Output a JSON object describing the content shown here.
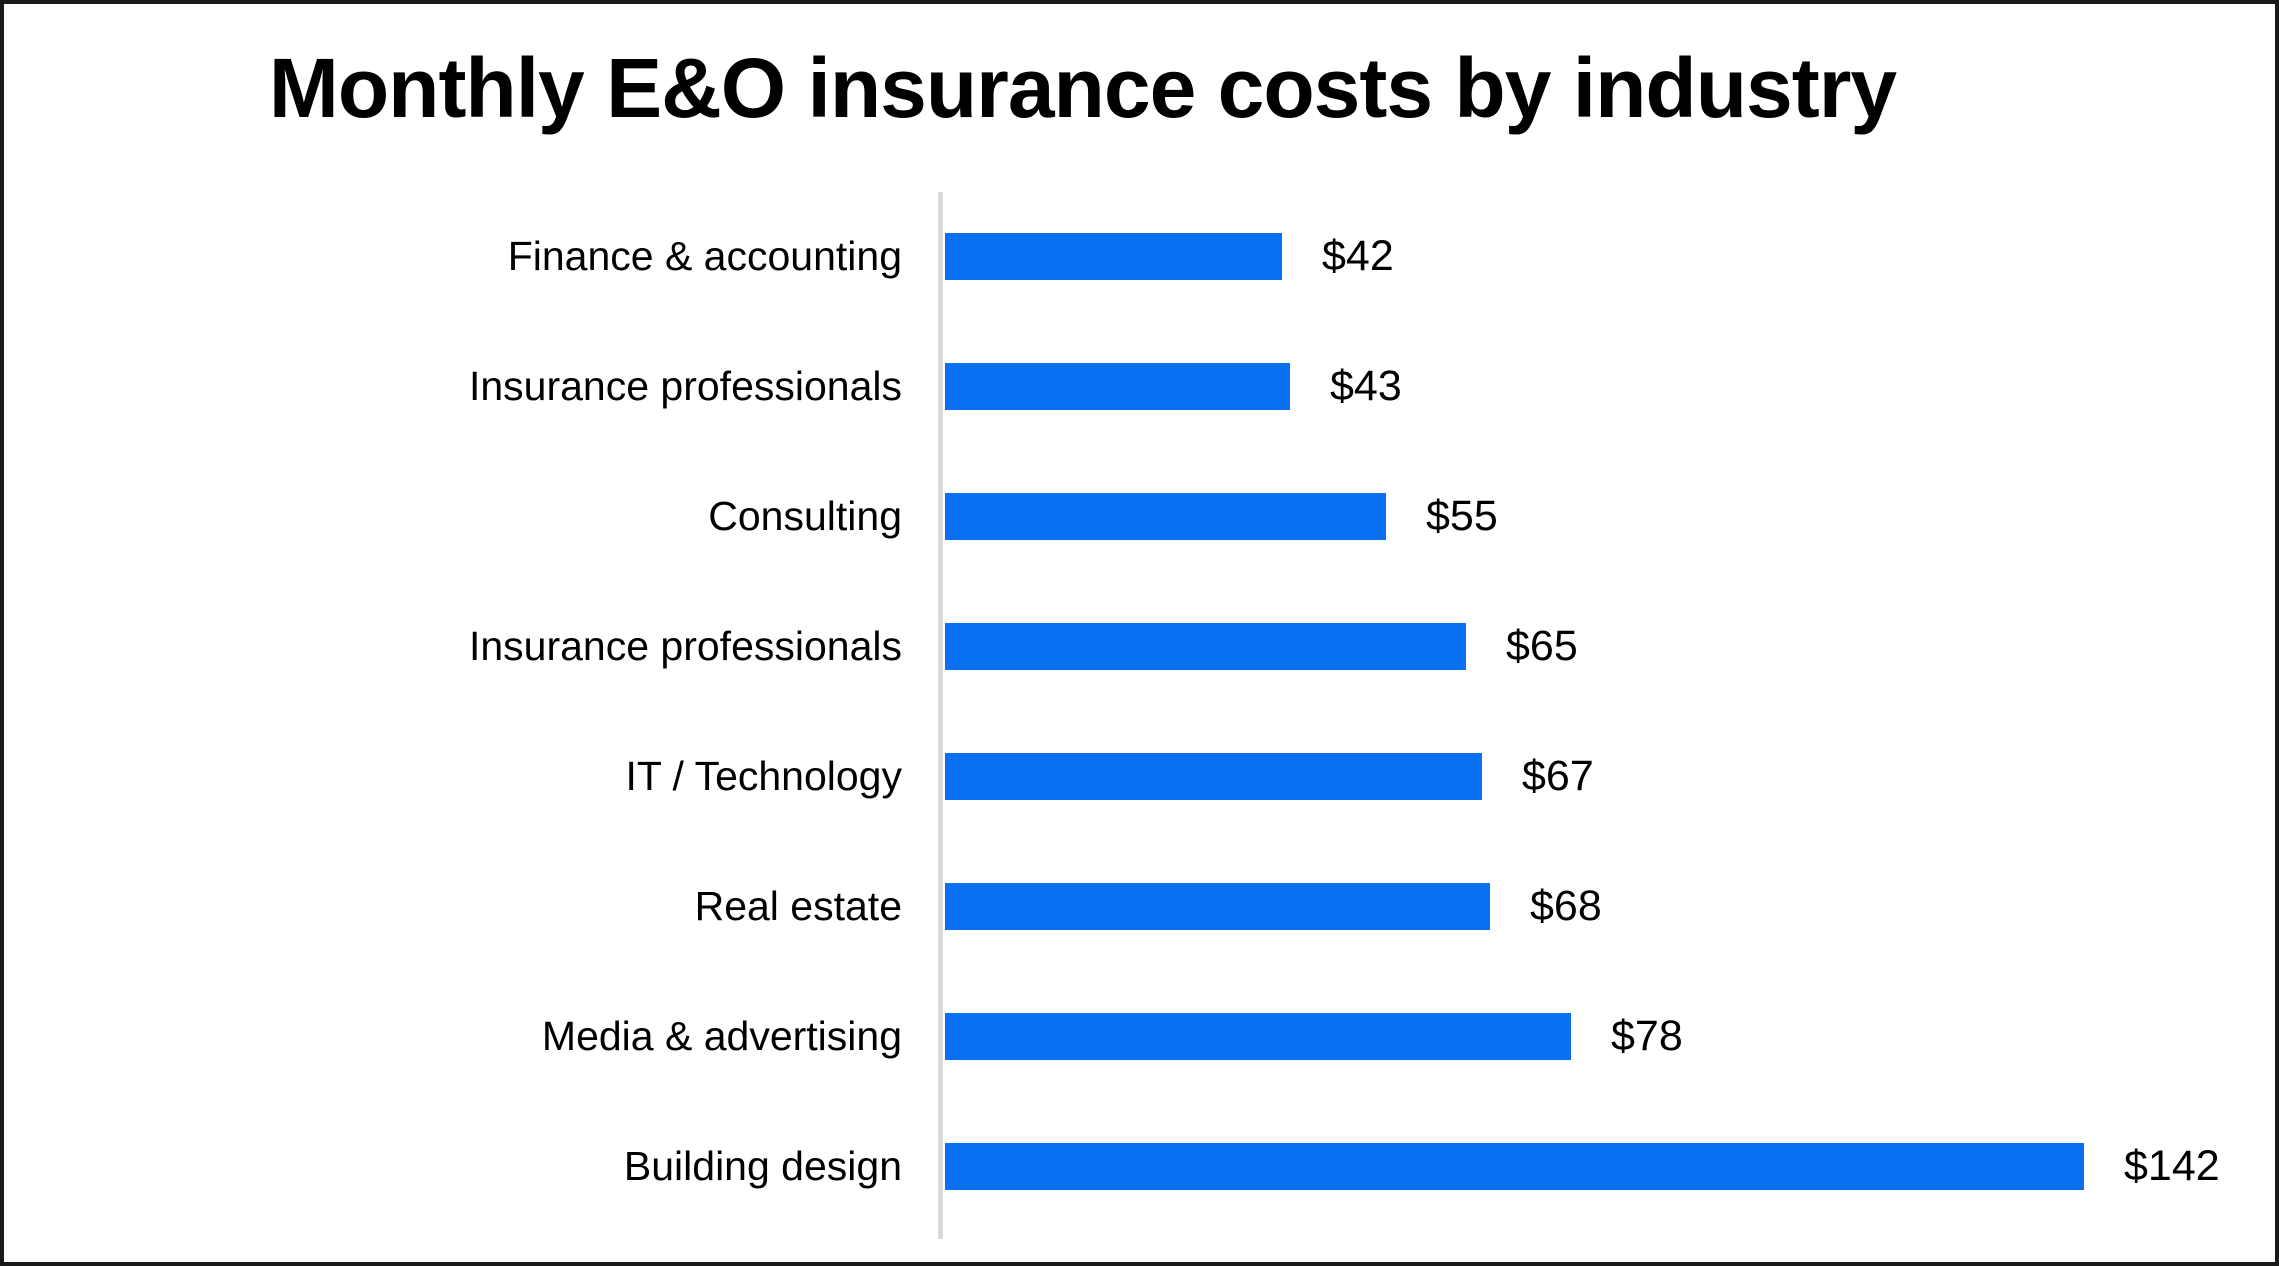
{
  "chart_data": {
    "type": "bar",
    "orientation": "horizontal",
    "title": "Monthly E&O insurance costs by industry",
    "categories": [
      "Finance & accounting",
      "Insurance professionals",
      "Consulting",
      "Insurance professionals",
      "IT / Technology",
      "Real estate",
      "Media & advertising",
      "Building design"
    ],
    "values": [
      42,
      43,
      55,
      65,
      67,
      68,
      78,
      142
    ],
    "value_labels": [
      "$42",
      "$43",
      "$55",
      "$65",
      "$67",
      "$68",
      "$78",
      "$142"
    ],
    "xlabel": "",
    "ylabel": "",
    "xlim": [
      0,
      160
    ],
    "grid": false,
    "legend": false,
    "bar_color": "#0a70f2",
    "axis_line_color": "#d9d9d9",
    "text_color": "#000000",
    "background_color": "#ffffff",
    "frame_border_color": "#1a1a1a"
  }
}
